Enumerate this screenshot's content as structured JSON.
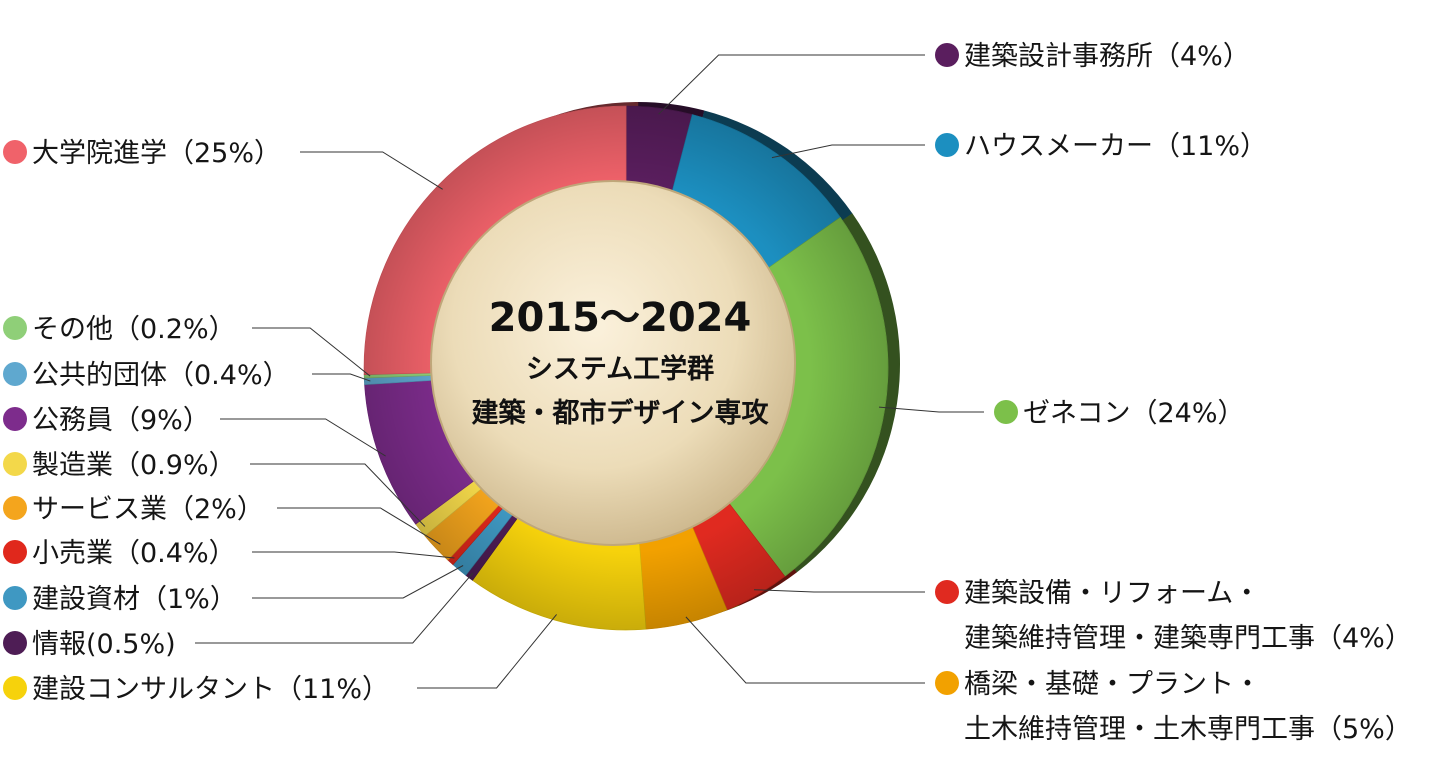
{
  "chart_data": {
    "type": "pie",
    "center_text": {
      "line1": "2015～2024",
      "line2": "システム工学群",
      "line3": "建築・都市デザイン専攻"
    },
    "slices": [
      {
        "label": "建築設計事務所（4%）",
        "value": 4,
        "color": "#5a1e5e"
      },
      {
        "label": "ハウスメーカー（11%）",
        "value": 11,
        "color": "#1c8fc0"
      },
      {
        "label": "ゼネコン（24%）",
        "value": 24,
        "color": "#7cc04a"
      },
      {
        "label": "建築設備・リフォーム・",
        "label2": "建築維持管理・建築専門工事（4%）",
        "value": 4,
        "color": "#e02a20"
      },
      {
        "label": "橋梁・基礎・プラント・",
        "label2": "土木維持管理・土木専門工事（5%）",
        "value": 5,
        "color": "#f2a100"
      },
      {
        "label": "建設コンサルタント（11%）",
        "value": 11,
        "color": "#f6d20c"
      },
      {
        "label": "情報(0.5%)",
        "value": 0.5,
        "color": "#4e1d55"
      },
      {
        "label": "建設資材（1%）",
        "value": 1,
        "color": "#3f98c2"
      },
      {
        "label": "小売業（0.4%）",
        "value": 0.4,
        "color": "#e0281c"
      },
      {
        "label": "サービス業（2%）",
        "value": 2,
        "color": "#f4a51d"
      },
      {
        "label": "製造業（0.9%）",
        "value": 0.9,
        "color": "#f3d84a"
      },
      {
        "label": "公務員（9%）",
        "value": 9,
        "color": "#7d2c8c"
      },
      {
        "label": "公共的団体（0.4%）",
        "value": 0.4,
        "color": "#5fa8cf"
      },
      {
        "label": "その他（0.2%）",
        "value": 0.2,
        "color": "#8fcf78"
      },
      {
        "label": "大学院進学（25%）",
        "value": 25,
        "color": "#f0626a"
      }
    ]
  }
}
